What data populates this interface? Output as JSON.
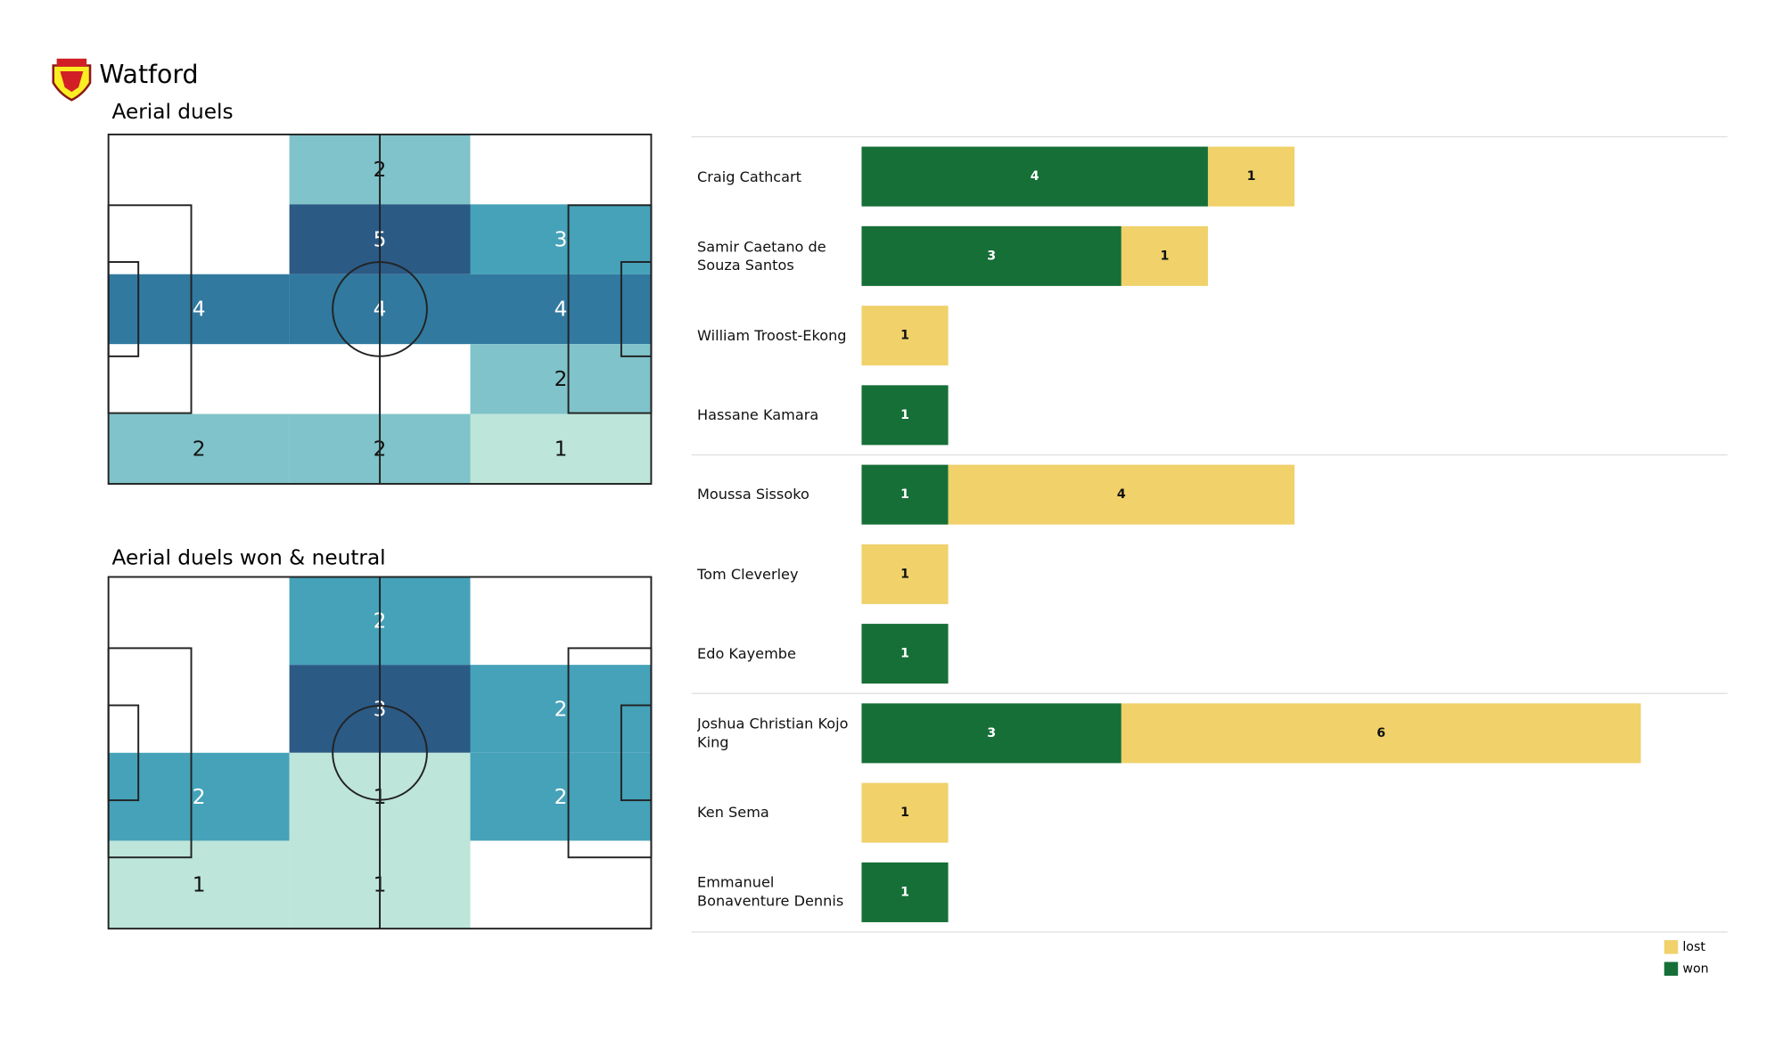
{
  "header": {
    "title": "Watford"
  },
  "chart_data": [
    {
      "type": "heatmap",
      "title": "Aerial duels",
      "values": [
        [
          null,
          2,
          null
        ],
        [
          null,
          5,
          3
        ],
        [
          4,
          4,
          4
        ],
        [
          null,
          null,
          2
        ],
        [
          2,
          2,
          1
        ]
      ],
      "colorscale": [
        "#bde5da",
        "#80c3ca",
        "#45a2b9",
        "#31799f",
        "#2b5a85"
      ]
    },
    {
      "type": "heatmap",
      "title": "Aerial duels won & neutral",
      "values": [
        [
          null,
          2,
          null
        ],
        [
          null,
          3,
          2
        ],
        [
          2,
          1,
          2
        ],
        [
          1,
          1,
          null
        ]
      ],
      "colorscale": [
        "#bde5da",
        "#80c3ca",
        "#45a2b9",
        "#31799f",
        "#2b5a85"
      ]
    },
    {
      "type": "stacked-barh",
      "categories": [
        "Craig Cathcart",
        "Samir Caetano de Souza Santos",
        "William Troost-Ekong",
        "Hassane Kamara",
        "Moussa Sissoko",
        "Tom Cleverley",
        "Edo Kayembe",
        "Joshua Christian Kojo King",
        "Ken Sema",
        "Emmanuel Bonaventure Dennis"
      ],
      "series": [
        {
          "name": "won",
          "color": "#166f37",
          "values": [
            4,
            3,
            null,
            1,
            1,
            null,
            1,
            3,
            null,
            1
          ]
        },
        {
          "name": "lost",
          "color": "#f0d16a",
          "values": [
            1,
            1,
            1,
            null,
            4,
            1,
            null,
            6,
            1,
            null
          ]
        }
      ],
      "xlim": [
        0,
        10
      ],
      "legend": "bottom-right"
    }
  ]
}
